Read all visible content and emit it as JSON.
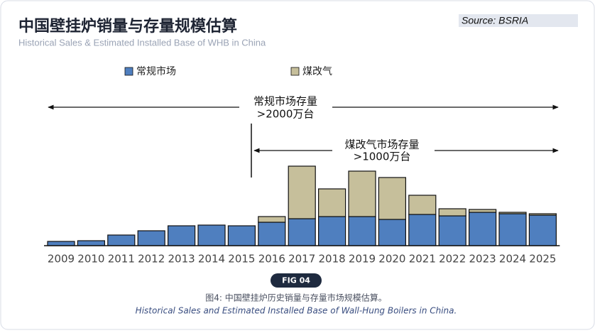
{
  "chart_data": {
    "type": "stacked-bar",
    "title": "中国壁挂炉销量与存量规模估算",
    "subtitle": "Historical Sales & Estimated Installed Base of WHB in China",
    "source": "Source: BSRIA",
    "categories": [
      "2009",
      "2010",
      "2011",
      "2012",
      "2013",
      "2014",
      "2015",
      "2016",
      "2017",
      "2018",
      "2019",
      "2020",
      "2021",
      "2022",
      "2023",
      "2024",
      "2025"
    ],
    "series": [
      {
        "name": "常规市场",
        "color": "#4f7fbf",
        "values": [
          6,
          7,
          15,
          21,
          28,
          29,
          28,
          33,
          38,
          41,
          41,
          37,
          44,
          42,
          47,
          45,
          43
        ]
      },
      {
        "name": "煤改气",
        "color": "#c6bf9b",
        "values": [
          0,
          0,
          0,
          0,
          0,
          0,
          0,
          8,
          74,
          39,
          64,
          59,
          27,
          10,
          4,
          2,
          2
        ]
      }
    ],
    "annotations": [
      {
        "text": "常规市场存量",
        "value_text": ">2000万台"
      },
      {
        "text": "煤改气市场存量",
        "value_text": ">1000万台"
      }
    ]
  },
  "figure": {
    "label": "FIG 04",
    "caption_zh": "图4: 中国壁挂炉历史销量与存量市场规模估算。",
    "caption_en": "Historical Sales and Estimated Installed Base of Wall-Hung Boilers in China."
  }
}
